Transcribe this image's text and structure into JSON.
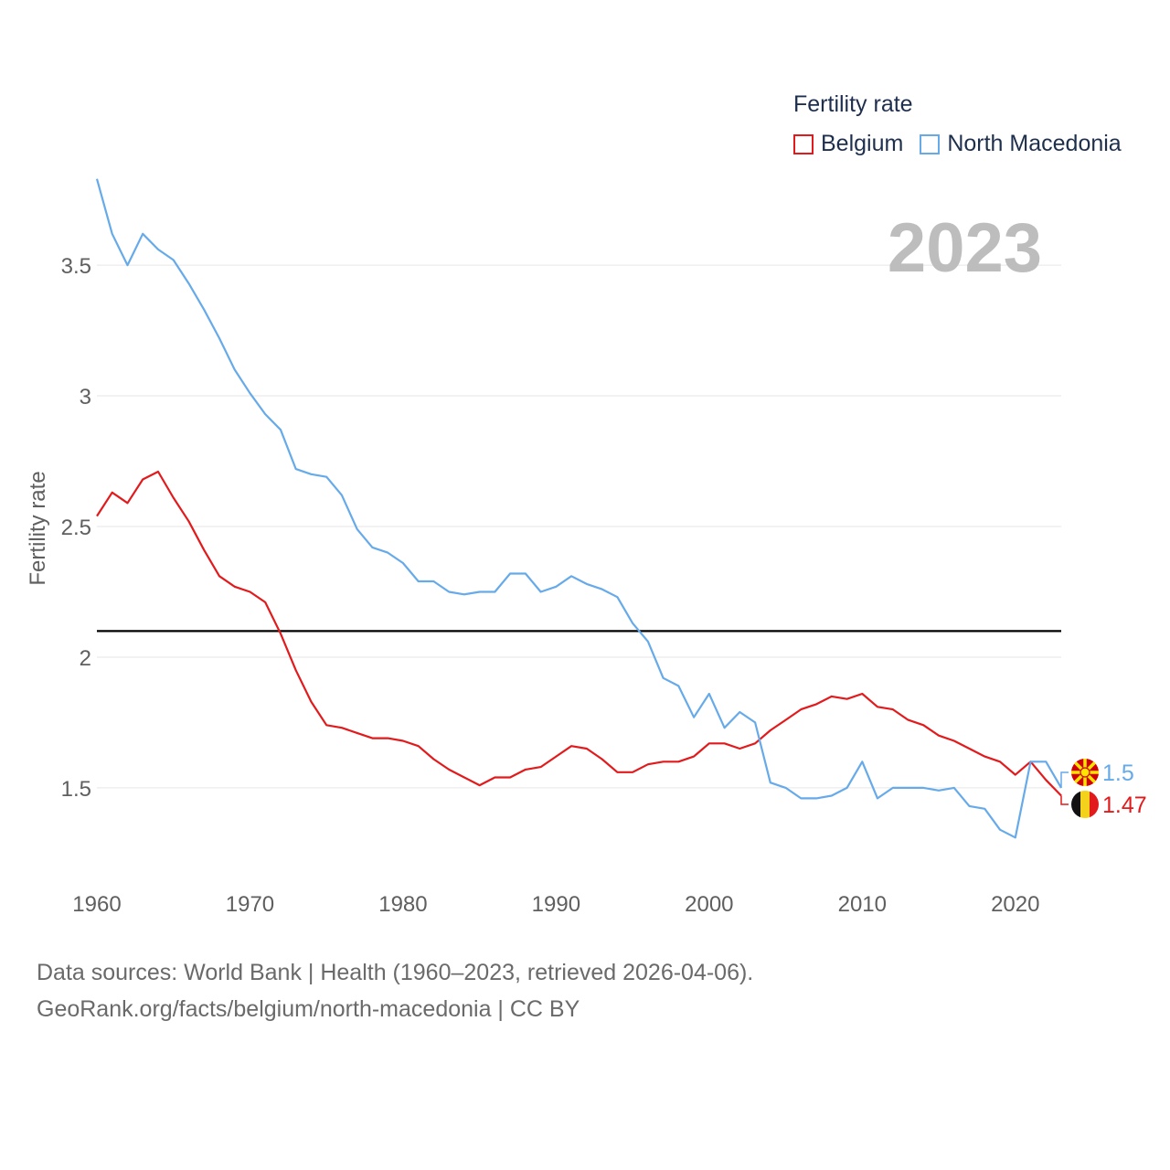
{
  "legend": {
    "title": "Fertility rate",
    "items": [
      {
        "name": "Belgium",
        "color": "#e31a1c"
      },
      {
        "name": "North Macedonia",
        "color": "#66aaea"
      }
    ]
  },
  "year_label": "2023",
  "footer": {
    "line1": "Data sources: World Bank | Health (1960–2023, retrieved 2026-04-06).",
    "line2": "GeoRank.org/facts/belgium/north-macedonia | CC BY"
  },
  "chart_data": {
    "type": "line",
    "title": "Fertility rate",
    "xlabel": "",
    "ylabel": "Fertility rate",
    "xlim": [
      1960,
      2023
    ],
    "ylim": [
      1.15,
      3.85
    ],
    "x_ticks": [
      1960,
      1970,
      1980,
      1990,
      2000,
      2010,
      2020
    ],
    "y_ticks": [
      1.5,
      2,
      2.5,
      3,
      3.5
    ],
    "y_tick_labels": [
      "1.5",
      "2",
      "2.5",
      "3",
      "3.5"
    ],
    "reference_line": {
      "y": 2.1,
      "color": "#000000"
    },
    "x": [
      1960,
      1961,
      1962,
      1963,
      1964,
      1965,
      1966,
      1967,
      1968,
      1969,
      1970,
      1971,
      1972,
      1973,
      1974,
      1975,
      1976,
      1977,
      1978,
      1979,
      1980,
      1981,
      1982,
      1983,
      1984,
      1985,
      1986,
      1987,
      1988,
      1989,
      1990,
      1991,
      1992,
      1993,
      1994,
      1995,
      1996,
      1997,
      1998,
      1999,
      2000,
      2001,
      2002,
      2003,
      2004,
      2005,
      2006,
      2007,
      2008,
      2009,
      2010,
      2011,
      2012,
      2013,
      2014,
      2015,
      2016,
      2017,
      2018,
      2019,
      2020,
      2021,
      2022,
      2023
    ],
    "series": [
      {
        "name": "Belgium",
        "color": "#e31a1c",
        "end_label": "1.47",
        "flag": "belgium-flag",
        "values": [
          2.54,
          2.63,
          2.59,
          2.68,
          2.71,
          2.61,
          2.52,
          2.41,
          2.31,
          2.27,
          2.25,
          2.21,
          2.09,
          1.95,
          1.83,
          1.74,
          1.73,
          1.71,
          1.69,
          1.69,
          1.68,
          1.66,
          1.61,
          1.57,
          1.54,
          1.51,
          1.54,
          1.54,
          1.57,
          1.58,
          1.62,
          1.66,
          1.65,
          1.61,
          1.56,
          1.56,
          1.59,
          1.6,
          1.6,
          1.62,
          1.67,
          1.67,
          1.65,
          1.67,
          1.72,
          1.76,
          1.8,
          1.82,
          1.85,
          1.84,
          1.86,
          1.81,
          1.8,
          1.76,
          1.74,
          1.7,
          1.68,
          1.65,
          1.62,
          1.6,
          1.55,
          1.6,
          1.53,
          1.47
        ]
      },
      {
        "name": "North Macedonia",
        "color": "#66aaea",
        "end_label": "1.5",
        "flag": "north-macedonia-flag",
        "values": [
          3.83,
          3.62,
          3.5,
          3.62,
          3.56,
          3.52,
          3.43,
          3.33,
          3.22,
          3.1,
          3.01,
          2.93,
          2.87,
          2.72,
          2.7,
          2.69,
          2.62,
          2.49,
          2.42,
          2.4,
          2.36,
          2.29,
          2.29,
          2.25,
          2.24,
          2.25,
          2.25,
          2.32,
          2.32,
          2.25,
          2.27,
          2.31,
          2.28,
          2.26,
          2.23,
          2.13,
          2.06,
          1.92,
          1.89,
          1.77,
          1.86,
          1.73,
          1.79,
          1.75,
          1.52,
          1.5,
          1.46,
          1.46,
          1.47,
          1.5,
          1.6,
          1.46,
          1.5,
          1.5,
          1.5,
          1.49,
          1.5,
          1.43,
          1.42,
          1.34,
          1.31,
          1.6,
          1.6,
          1.5
        ]
      }
    ]
  }
}
